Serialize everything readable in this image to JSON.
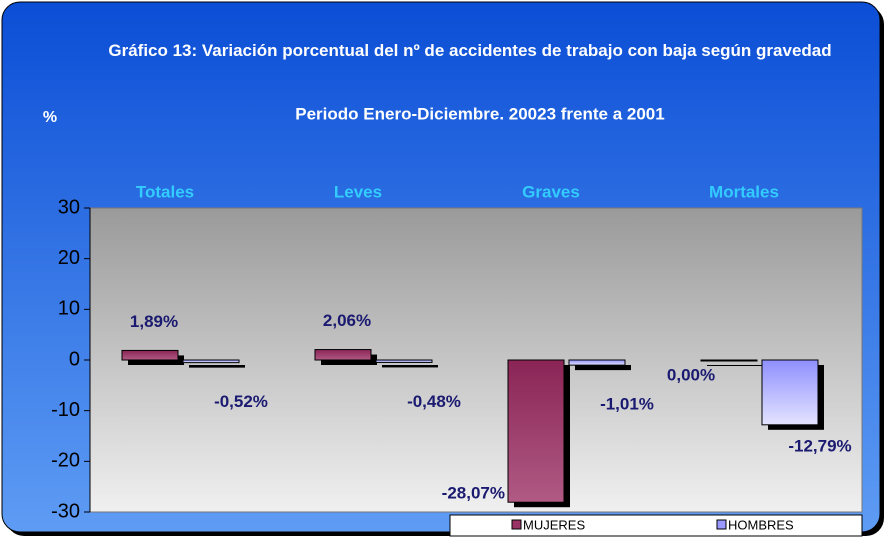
{
  "chart_data": {
    "type": "bar",
    "title": "Gráfico 13: Variación porcentual del nº de accidentes de trabajo con baja según gravedad",
    "subtitle": "Periodo Enero-Diciembre. 20023 frente a 2001",
    "y_label": "%",
    "categories": [
      "Totales",
      "Leves",
      "Graves",
      "Mortales"
    ],
    "series": [
      {
        "name": "MUJERES",
        "color": "#993366",
        "values": [
          1.89,
          2.06,
          -28.07,
          0.0
        ],
        "value_labels": [
          "1,89%",
          "2,06%",
          "-28,07%",
          "0,00%"
        ]
      },
      {
        "name": "HOMBRES",
        "color": "#9999ff",
        "values": [
          -0.52,
          -0.48,
          -1.01,
          -12.79
        ],
        "value_labels": [
          "-0,52%",
          "-0,48%",
          "-1,01%",
          "-12,79%"
        ]
      }
    ],
    "ylim": [
      -30,
      30
    ],
    "yticks": [
      -30,
      -20,
      -10,
      0,
      10,
      20,
      30
    ]
  }
}
